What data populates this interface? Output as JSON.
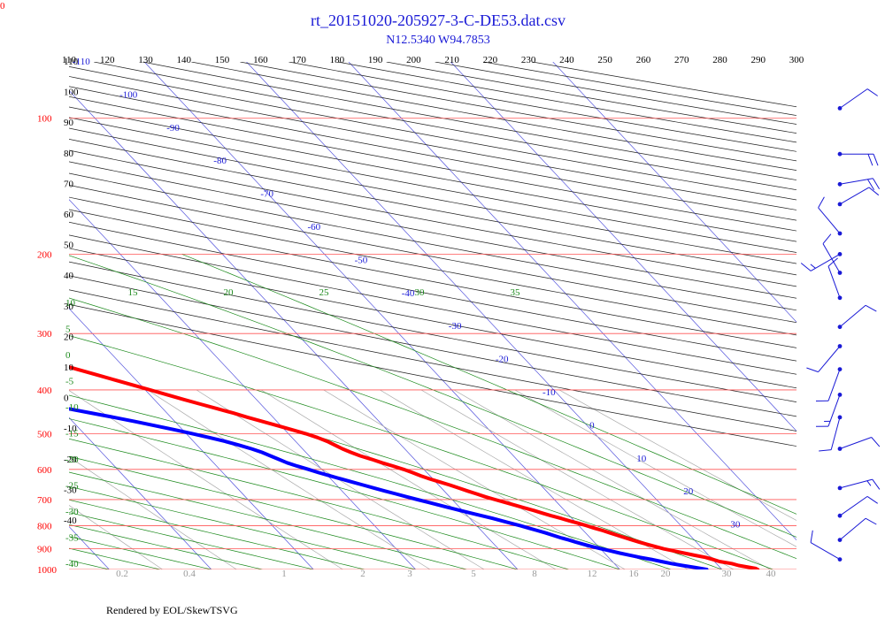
{
  "chart_data": {
    "type": "line",
    "corner_label": "0",
    "title": "rt_20151020-205927-3-C-DE53.dat.csv",
    "subtitle": "N12.5340 W94.7853",
    "footer": "Rendered by EOL/SkewTSVG",
    "pressure_levels": [
      100,
      200,
      300,
      400,
      500,
      600,
      700,
      800,
      900,
      1000
    ],
    "top_ticks": [
      110,
      120,
      130,
      140,
      150,
      160,
      170,
      180,
      190,
      200,
      210,
      220,
      230,
      240,
      250,
      260,
      270,
      280,
      290,
      300
    ],
    "left_black_labels": [
      {
        "label": "110",
        "value": 110
      },
      {
        "label": "100",
        "value": 100
      },
      {
        "label": "90",
        "value": 90
      },
      {
        "label": "80",
        "value": 80
      },
      {
        "label": "70",
        "value": 70
      },
      {
        "label": "60",
        "value": 60
      },
      {
        "label": "50",
        "value": 50
      },
      {
        "label": "40",
        "value": 40
      },
      {
        "label": "30",
        "value": 30
      },
      {
        "label": "20",
        "value": 20
      },
      {
        "label": "10",
        "value": 10
      },
      {
        "label": "0",
        "value": 0
      },
      {
        "label": "-10",
        "value": -10
      },
      {
        "label": "-20",
        "value": -20
      },
      {
        "label": "-30",
        "value": -30
      },
      {
        "label": "-40",
        "value": -40
      }
    ],
    "isotherm_labels": [
      -110,
      -100,
      -90,
      -80,
      -70,
      -60,
      -50,
      -40,
      -30,
      -20,
      -10,
      0,
      10,
      20,
      30
    ],
    "moist_labels": [
      {
        "label": "15",
        "value": 15
      },
      {
        "label": "20",
        "value": 20
      },
      {
        "label": "25",
        "value": 25
      },
      {
        "label": "30",
        "value": 30
      },
      {
        "label": "35",
        "value": 35
      }
    ],
    "moist_left_labels": [
      {
        "label": "10",
        "value": 10
      },
      {
        "label": "5",
        "value": 5
      },
      {
        "label": "0",
        "value": 0
      },
      {
        "label": "-5",
        "value": -5
      },
      {
        "label": "-10",
        "value": -10
      },
      {
        "label": "-15",
        "value": -15
      },
      {
        "label": "-20",
        "value": -20
      },
      {
        "label": "-25",
        "value": -25
      },
      {
        "label": "-30",
        "value": -30
      },
      {
        "label": "-35",
        "value": -35
      },
      {
        "label": "-40",
        "value": -40
      }
    ],
    "mixing_ratio_labels": [
      0.2,
      0.4,
      1,
      2,
      3,
      5,
      8,
      12,
      16,
      20,
      30,
      40
    ],
    "series": [
      {
        "color": "#ff0000",
        "points": [
          [
            1000,
            23.5
          ],
          [
            995,
            23.4
          ],
          [
            980,
            22.0
          ],
          [
            970,
            21.5
          ],
          [
            960,
            20.5
          ],
          [
            950,
            20.0
          ],
          [
            940,
            19.5
          ],
          [
            930,
            18.6
          ],
          [
            920,
            17.8
          ],
          [
            910,
            17.0
          ],
          [
            900,
            16.2
          ],
          [
            890,
            15.6
          ],
          [
            880,
            15.0
          ],
          [
            870,
            14.4
          ],
          [
            860,
            13.9
          ],
          [
            850,
            13.4
          ],
          [
            840,
            12.9
          ],
          [
            830,
            12.4
          ],
          [
            820,
            11.9
          ],
          [
            810,
            11.3
          ],
          [
            800,
            10.8
          ],
          [
            790,
            10.2
          ],
          [
            780,
            9.5
          ],
          [
            770,
            8.9
          ],
          [
            760,
            8.2
          ],
          [
            750,
            7.6
          ],
          [
            740,
            7.0
          ],
          [
            730,
            6.3
          ],
          [
            720,
            5.6
          ],
          [
            710,
            4.9
          ],
          [
            700,
            4.2
          ],
          [
            690,
            3.5
          ],
          [
            680,
            2.9
          ],
          [
            670,
            2.3
          ],
          [
            660,
            1.7
          ],
          [
            650,
            1.1
          ],
          [
            640,
            0.4
          ],
          [
            630,
            -0.3
          ],
          [
            620,
            -0.9
          ],
          [
            610,
            -1.4
          ],
          [
            600,
            -2.0
          ],
          [
            590,
            -2.7
          ],
          [
            580,
            -3.5
          ],
          [
            570,
            -4.2
          ],
          [
            560,
            -5.0
          ],
          [
            550,
            -5.6
          ],
          [
            540,
            -6.1
          ],
          [
            530,
            -6.5
          ],
          [
            520,
            -6.9
          ],
          [
            510,
            -7.5
          ],
          [
            500,
            -8.3
          ],
          [
            490,
            -9.3
          ],
          [
            480,
            -10.3
          ],
          [
            470,
            -11.4
          ],
          [
            460,
            -12.5
          ],
          [
            450,
            -13.5
          ],
          [
            440,
            -14.7
          ],
          [
            430,
            -15.9
          ],
          [
            420,
            -17.1
          ],
          [
            410,
            -18.3
          ],
          [
            400,
            -19.5
          ],
          [
            390,
            -20.8
          ],
          [
            380,
            -22.1
          ],
          [
            370,
            -23.4
          ],
          [
            360,
            -24.8
          ],
          [
            350,
            -26.2
          ],
          [
            340,
            -27.7
          ],
          [
            330,
            -29.3
          ],
          [
            320,
            -31.0
          ],
          [
            310,
            -32.6
          ],
          [
            300,
            -34.2
          ],
          [
            290,
            -35.9
          ],
          [
            280,
            -37.7
          ],
          [
            270,
            -39.5
          ],
          [
            260,
            -41.4
          ],
          [
            250,
            -43.0
          ],
          [
            240,
            -44.9
          ],
          [
            230,
            -46.8
          ],
          [
            220,
            -48.7
          ],
          [
            210,
            -50.7
          ],
          [
            200,
            -52.7
          ],
          [
            190,
            -54.8
          ],
          [
            180,
            -57.0
          ],
          [
            170,
            -59.5
          ],
          [
            160,
            -62.1
          ],
          [
            150,
            -64.8
          ],
          [
            140,
            -67.6
          ],
          [
            130,
            -70.6
          ],
          [
            120,
            -73.7
          ],
          [
            110,
            -76.8
          ],
          [
            105,
            -78.3
          ],
          [
            100,
            -79.3
          ],
          [
            97,
            -79.6
          ],
          [
            95,
            -79.5
          ]
        ]
      },
      {
        "color": "#ff0000",
        "dotted": true,
        "points": [
          [
            95,
            -77.8
          ],
          [
            92,
            -73.5
          ],
          [
            89,
            -72.0
          ],
          [
            86,
            -71.5
          ],
          [
            83,
            -70.5
          ],
          [
            80,
            -68.5
          ],
          [
            77,
            -66.5
          ],
          [
            74,
            -63.5
          ],
          [
            71,
            -59.5
          ],
          [
            69,
            -58.0
          ],
          [
            67,
            -57.5
          ]
        ]
      },
      {
        "color": "#0000ff",
        "points": [
          [
            1000,
            18.5
          ],
          [
            990,
            17.6
          ],
          [
            980,
            16.5
          ],
          [
            970,
            15.6
          ],
          [
            960,
            14.8
          ],
          [
            950,
            14.0
          ],
          [
            940,
            13.1
          ],
          [
            930,
            12.3
          ],
          [
            920,
            11.5
          ],
          [
            910,
            10.8
          ],
          [
            900,
            10.1
          ],
          [
            890,
            9.4
          ],
          [
            880,
            8.8
          ],
          [
            870,
            8.2
          ],
          [
            860,
            7.7
          ],
          [
            850,
            7.1
          ],
          [
            840,
            6.6
          ],
          [
            830,
            6.1
          ],
          [
            820,
            5.5
          ],
          [
            810,
            4.9
          ],
          [
            800,
            4.3
          ],
          [
            790,
            3.6
          ],
          [
            780,
            2.9
          ],
          [
            770,
            2.2
          ],
          [
            760,
            1.4
          ],
          [
            750,
            0.6
          ],
          [
            740,
            -0.2
          ],
          [
            730,
            -1.0
          ],
          [
            720,
            -1.8
          ],
          [
            710,
            -2.6
          ],
          [
            700,
            -3.4
          ],
          [
            690,
            -4.2
          ],
          [
            680,
            -5.0
          ],
          [
            670,
            -5.8
          ],
          [
            660,
            -6.6
          ],
          [
            650,
            -7.4
          ],
          [
            640,
            -8.2
          ],
          [
            630,
            -9.0
          ],
          [
            620,
            -9.8
          ],
          [
            610,
            -10.6
          ],
          [
            600,
            -11.3
          ],
          [
            590,
            -12.1
          ],
          [
            580,
            -12.8
          ],
          [
            570,
            -13.3
          ],
          [
            560,
            -13.8
          ],
          [
            550,
            -14.3
          ],
          [
            540,
            -15.0
          ],
          [
            530,
            -15.9
          ],
          [
            520,
            -16.9
          ],
          [
            510,
            -18.1
          ],
          [
            500,
            -19.4
          ],
          [
            490,
            -20.8
          ],
          [
            480,
            -22.3
          ],
          [
            470,
            -23.9
          ],
          [
            460,
            -25.6
          ],
          [
            450,
            -27.4
          ],
          [
            440,
            -29.3
          ],
          [
            430,
            -31.3
          ],
          [
            420,
            -33.4
          ],
          [
            410,
            -35.7
          ],
          [
            400,
            -38.1
          ],
          [
            390,
            -40.6
          ],
          [
            380,
            -43.3
          ],
          [
            370,
            -46.1
          ],
          [
            360,
            -49.1
          ],
          [
            350,
            -52.3
          ],
          [
            340,
            -55.6
          ],
          [
            330,
            -59.2
          ],
          [
            320,
            -63.0
          ],
          [
            310,
            -67.1
          ],
          [
            300,
            -71.5
          ]
        ]
      },
      {
        "color": "#0000ff",
        "dotted": true,
        "points": [
          [
            295,
            -74.0
          ],
          [
            290,
            -76.8
          ],
          [
            285,
            -79.7
          ],
          [
            280,
            -82.6
          ],
          [
            275,
            -85.5
          ],
          [
            270,
            -88.4
          ],
          [
            265,
            -91.1
          ],
          [
            260,
            -93.8
          ],
          [
            255,
            -96.3
          ],
          [
            250,
            -98.7
          ],
          [
            245,
            -101.0
          ],
          [
            240,
            -103.3
          ],
          [
            235,
            -105.6
          ],
          [
            230,
            -107.8
          ],
          [
            225,
            -110.0
          ],
          [
            220,
            -112.2
          ],
          [
            215,
            -114.5
          ],
          [
            210,
            -116.8
          ],
          [
            205,
            -119.2
          ],
          [
            200,
            -121.7
          ],
          [
            195,
            -124.3
          ],
          [
            190,
            -127.0
          ]
        ]
      }
    ],
    "wind_barbs": [
      {
        "pressure": 95,
        "speed_kt": 10,
        "direction_deg": 55
      },
      {
        "pressure": 120,
        "speed_kt": 20,
        "direction_deg": 90
      },
      {
        "pressure": 140,
        "speed_kt": 20,
        "direction_deg": 80
      },
      {
        "pressure": 155,
        "speed_kt": 10,
        "direction_deg": 60
      },
      {
        "pressure": 180,
        "speed_kt": 10,
        "direction_deg": 320
      },
      {
        "pressure": 200,
        "speed_kt": 15,
        "direction_deg": 240
      },
      {
        "pressure": 220,
        "speed_kt": 10,
        "direction_deg": 330
      },
      {
        "pressure": 250,
        "speed_kt": 10,
        "direction_deg": 340
      },
      {
        "pressure": 290,
        "speed_kt": 10,
        "direction_deg": 50
      },
      {
        "pressure": 320,
        "speed_kt": 10,
        "direction_deg": 220
      },
      {
        "pressure": 360,
        "speed_kt": 10,
        "direction_deg": 200
      },
      {
        "pressure": 410,
        "speed_kt": 15,
        "direction_deg": 200
      },
      {
        "pressure": 460,
        "speed_kt": 10,
        "direction_deg": 195
      },
      {
        "pressure": 540,
        "speed_kt": 10,
        "direction_deg": 70
      },
      {
        "pressure": 660,
        "speed_kt": 15,
        "direction_deg": 75
      },
      {
        "pressure": 760,
        "speed_kt": 10,
        "direction_deg": 55
      },
      {
        "pressure": 860,
        "speed_kt": 10,
        "direction_deg": 50
      },
      {
        "pressure": 950,
        "speed_kt": 10,
        "direction_deg": 300
      }
    ]
  }
}
